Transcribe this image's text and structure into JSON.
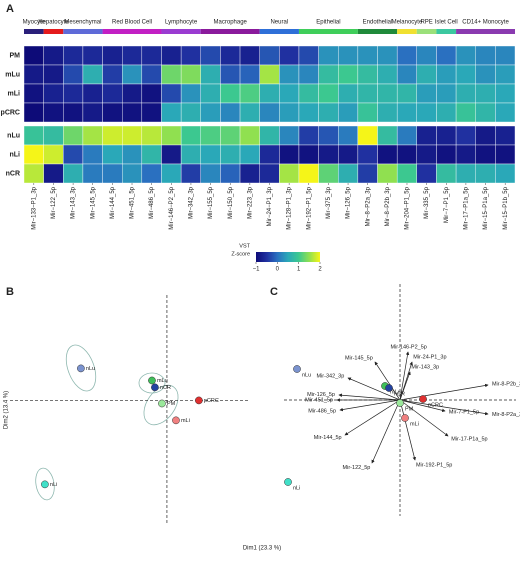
{
  "chart_data": [
    {
      "type": "heatmap",
      "panel": "A",
      "rows": [
        "PM",
        "mLu",
        "mLi",
        "pCRC",
        "nLu",
        "nLi",
        "nCR"
      ],
      "row_split": 4,
      "columns": [
        "Mir−133−P1_3p",
        "Mir−122_5p",
        "Mir−143_3p",
        "Mir−145_5p",
        "Mir−144_5p",
        "Mir−451_5p",
        "Mir−486_5p",
        "Mir−146−P2_5p",
        "Mir−342_3p",
        "Mir−155_5p",
        "Mir−150_5p",
        "Mir−223_3p",
        "Mir−24−P1_3p",
        "Mir−128−P1_3p",
        "Mir−192−P1_5p",
        "Mir−375_3p",
        "Mir−126_5p",
        "Mir−8−P2a_3p",
        "Mir−8−P2b_3p",
        "Mir−204−P1_5p",
        "Mir−335_5p",
        "Mir−7−P1_5p",
        "Mir−17−P1a_5p",
        "Mir−15−P1a_5p",
        "Mir−15−P1b_5p"
      ],
      "groups": [
        {
          "name": "Myocyte",
          "color": "#2a1f7a",
          "start": 0,
          "end": 0
        },
        {
          "name": "Hepatocyte",
          "color": "#e41a1c",
          "start": 1,
          "end": 1
        },
        {
          "name": "Mesenchymal",
          "color": "#5e6ad8",
          "start": 2,
          "end": 3
        },
        {
          "name": "Red Blood Cell",
          "color": "#c21fc4",
          "start": 4,
          "end": 6
        },
        {
          "name": "Lymphocyte",
          "color": "#9a3bd1",
          "start": 7,
          "end": 8
        },
        {
          "name": "Macrophage",
          "color": "#8a1a9c",
          "start": 9,
          "end": 11
        },
        {
          "name": "Neural",
          "color": "#2e6fd8",
          "start": 12,
          "end": 13
        },
        {
          "name": "Epithelial",
          "color": "#3fce5a",
          "start": 14,
          "end": 16
        },
        {
          "name": "Endothelial",
          "color": "#1f8a3a",
          "start": 17,
          "end": 18
        },
        {
          "name": "Melanocyte",
          "color": "#f0e030",
          "start": 19,
          "end": 19
        },
        {
          "name": "RPE",
          "color": "#9be07a",
          "start": 20,
          "end": 20
        },
        {
          "name": "Islet Cell",
          "color": "#3cc8a0",
          "start": 21,
          "end": 21
        },
        {
          "name": "CD14+ Monocyte",
          "color": "#8a3ab0",
          "start": 22,
          "end": 24
        }
      ],
      "values": [
        [
          -1,
          -0.8,
          -0.6,
          -0.6,
          -0.7,
          -0.6,
          -0.6,
          -0.7,
          -0.5,
          -0.3,
          -0.6,
          -0.7,
          -0.2,
          -0.5,
          -0.3,
          0.3,
          0.3,
          0.3,
          0.3,
          0,
          0.2,
          0,
          0.3,
          0.2,
          0.2
        ],
        [
          -0.8,
          -0.8,
          -0.3,
          0.6,
          -0.4,
          0.3,
          -0.3,
          1.3,
          1.4,
          0.6,
          -0.2,
          -0.1,
          1.6,
          0.3,
          0.2,
          0.8,
          1.0,
          0.8,
          0.6,
          0.2,
          0.6,
          0.4,
          0.5,
          0.3,
          0.4
        ],
        [
          -0.9,
          -0.7,
          -0.6,
          -0.7,
          -0.6,
          -0.8,
          -0.9,
          -0.3,
          0.3,
          0.6,
          1.0,
          1.1,
          0.6,
          0.5,
          0.8,
          1.0,
          0.6,
          0.7,
          0.7,
          0.7,
          0.4,
          0.4,
          0.6,
          0.6,
          0.5
        ],
        [
          -1,
          -0.9,
          -0.9,
          -0.8,
          -0.9,
          -0.9,
          -0.9,
          0.5,
          0.6,
          0.4,
          0.2,
          0.6,
          0.2,
          0.4,
          0.5,
          0.6,
          0.4,
          0.9,
          0.6,
          0.5,
          0.5,
          0.6,
          0.9,
          0.7,
          0.5
        ],
        [
          0.9,
          0.8,
          1.3,
          1.6,
          1.8,
          1.8,
          1.7,
          1.5,
          1.0,
          1.1,
          1.2,
          1.5,
          0.7,
          0.2,
          -0.4,
          -0.2,
          0.1,
          2.0,
          0.8,
          0.1,
          -0.7,
          -0.7,
          -0.5,
          -0.8,
          -0.7
        ],
        [
          2.0,
          1.8,
          -0.3,
          0.1,
          0.5,
          0.3,
          0.7,
          -0.8,
          0.6,
          0.5,
          0.6,
          0.5,
          -0.6,
          -0.9,
          -0.9,
          -0.8,
          -0.8,
          -0.5,
          -0.9,
          -0.9,
          -0.8,
          -0.9,
          -0.8,
          -0.9,
          -0.9
        ],
        [
          1.7,
          -0.8,
          0.6,
          0.1,
          0.1,
          0.3,
          0.0,
          0.5,
          -0.4,
          0.2,
          -0.1,
          -0.7,
          -0.6,
          1.6,
          2.2,
          1.2,
          0.6,
          -0.4,
          1.5,
          1.0,
          -0.5,
          0.8,
          0.6,
          0.6,
          0.5
        ]
      ],
      "colorscale": [
        "#0d0b78",
        "#2030a0",
        "#2a70c0",
        "#2aa8b8",
        "#3cc890",
        "#90e050",
        "#f5f518"
      ],
      "zlim": [
        -1,
        2
      ],
      "zticks": [
        {
          "value": -1,
          "label": "−1"
        },
        0,
        1,
        2
      ],
      "colorbar_title": [
        "VST",
        "Z-score"
      ]
    },
    {
      "type": "scatter",
      "panel": "B",
      "xlabel": "Dim1 (23.3 %)",
      "ylabel": "Dim2 (13.4 %)",
      "xlim": [
        -8.5,
        4.5
      ],
      "ylim": [
        -6.5,
        5.5
      ],
      "series": [
        {
          "name": "nLu",
          "color": "#7b93cf",
          "x": [
            -4.66
          ],
          "values": [
            1.67
          ]
        },
        {
          "name": "mLu",
          "color": "#3fbf5a",
          "x": [
            -0.81
          ],
          "values": [
            1.04
          ]
        },
        {
          "name": "nCR",
          "color": "#2342a0",
          "x": [
            -0.65
          ],
          "values": [
            0.68
          ]
        },
        {
          "name": "PM",
          "color": "#9be89b",
          "x": [
            -0.27
          ],
          "values": [
            -0.16
          ]
        },
        {
          "name": "pCRC",
          "color": "#e03030",
          "x": [
            1.73
          ],
          "values": [
            0
          ]
        },
        {
          "name": "mLi",
          "color": "#f08080",
          "x": [
            0.49
          ],
          "values": [
            -1.04
          ]
        },
        {
          "name": "nLi",
          "color": "#40e0c8",
          "x": [
            -6.61
          ],
          "values": [
            -4.38
          ]
        }
      ]
    },
    {
      "type": "biplot",
      "panel": "C",
      "xlim": [
        -5.8,
        5.8
      ],
      "ylim": [
        -5.8,
        5.8
      ],
      "series": [
        {
          "name": "nLu",
          "color": "#7b93cf",
          "x": [
            -5.15
          ],
          "values": [
            1.55
          ]
        },
        {
          "name": "mLu",
          "color": "#3fbf5a",
          "x": [
            -0.75
          ],
          "values": [
            0.7
          ]
        },
        {
          "name": "nCR",
          "color": "#2342a0",
          "x": [
            -0.55
          ],
          "values": [
            0.6
          ]
        },
        {
          "name": "PM",
          "color": "#9be89b",
          "x": [
            0
          ],
          "values": [
            -0.15
          ]
        },
        {
          "name": "pCRC",
          "color": "#e03030",
          "x": [
            1.15
          ],
          "values": [
            0.05
          ]
        },
        {
          "name": "mLi",
          "color": "#f08080",
          "x": [
            0.25
          ],
          "values": [
            -0.9
          ]
        },
        {
          "name": "nLi",
          "color": "#40e0c8",
          "x": [
            -5.6
          ],
          "values": [
            -4.1
          ]
        }
      ],
      "vectors": [
        {
          "name": "Mir-146-P2_5p",
          "x": 0.4,
          "y": 2.4
        },
        {
          "name": "Mir-145_5p",
          "x": -1.25,
          "y": 1.9
        },
        {
          "name": "Mir-24-P1_3p",
          "x": 0.6,
          "y": 1.9
        },
        {
          "name": "Mir-143_3p",
          "x": 0.5,
          "y": 1.4
        },
        {
          "name": "Mir-342_3p",
          "x": -2.6,
          "y": 1.1
        },
        {
          "name": "Mir-126_5p",
          "x": -3.05,
          "y": 0.25
        },
        {
          "name": "Mir-451_5p",
          "x": -3.15,
          "y": 0
        },
        {
          "name": "Mir-486_5p",
          "x": -3.0,
          "y": -0.5
        },
        {
          "name": "Mir-144_5p",
          "x": -2.75,
          "y": -1.75
        },
        {
          "name": "Mir-122_5p",
          "x": -1.4,
          "y": -3.15
        },
        {
          "name": "Mir-8-P2b_3p",
          "x": 4.4,
          "y": 0.75
        },
        {
          "name": "Mir-8-P2a_3p",
          "x": 4.4,
          "y": -0.7
        },
        {
          "name": "Mir-7-P1_5p",
          "x": 2.25,
          "y": -0.55
        },
        {
          "name": "Mir-17-P1a_5p",
          "x": 2.4,
          "y": -1.8
        },
        {
          "name": "Mir-192-P1_5p",
          "x": 0.75,
          "y": -3.0
        }
      ]
    }
  ]
}
